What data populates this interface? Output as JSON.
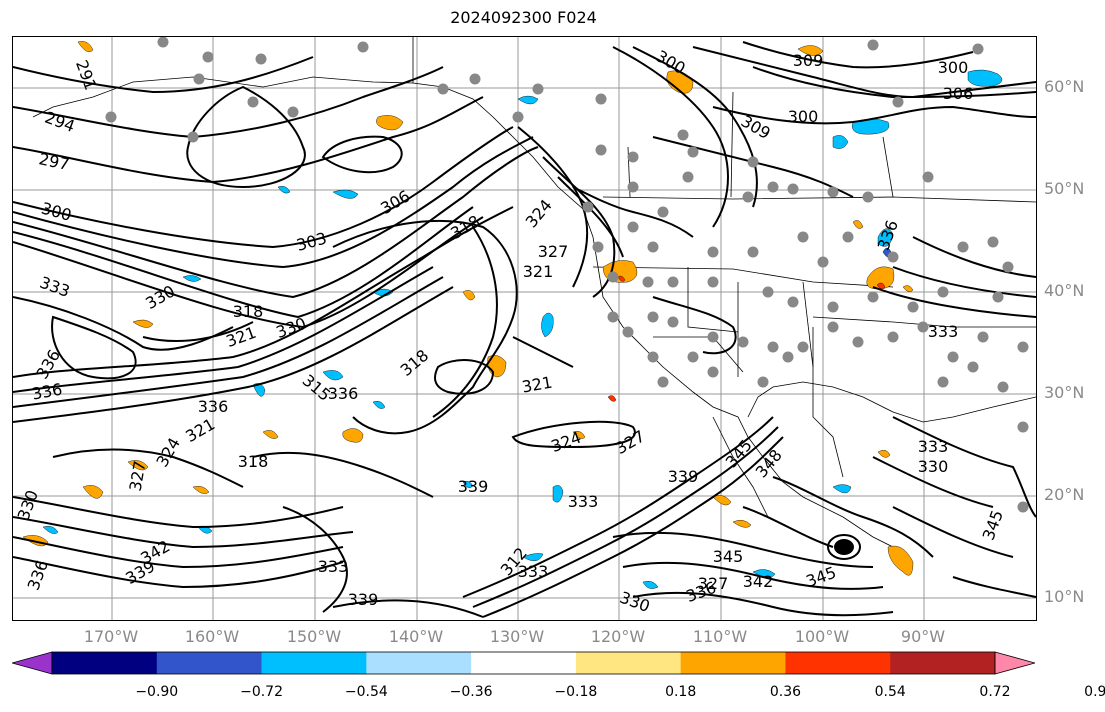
{
  "title": "2024092300 F024",
  "lat_labels": [
    "60°N",
    "50°N",
    "40°N",
    "30°N",
    "20°N",
    "10°N"
  ],
  "lon_labels": [
    "170°W",
    "160°W",
    "150°W",
    "140°W",
    "130°W",
    "120°W",
    "110°W",
    "100°W",
    "90°W"
  ],
  "colorbar": {
    "colors": [
      "#9933cc",
      "#000080",
      "#3355cc",
      "#00bfff",
      "#aadfff",
      "#ffffff",
      "#ffe680",
      "#ffa500",
      "#ff3300",
      "#b22222",
      "#ff88aa"
    ],
    "ticks": [
      "−0.90",
      "−0.72",
      "−0.54",
      "−0.36",
      "−0.18",
      "0.18",
      "0.36",
      "0.54",
      "0.72",
      "0.90"
    ]
  },
  "contour_labels": [
    "291",
    "294",
    "297",
    "300",
    "303",
    "306",
    "309",
    "300",
    "306",
    "300",
    "309",
    "300",
    "318",
    "321",
    "324",
    "327",
    "330",
    "333",
    "336",
    "315",
    "318",
    "321",
    "324",
    "327",
    "318",
    "321",
    "324",
    "327",
    "330",
    "333",
    "336",
    "339",
    "342",
    "345",
    "345",
    "342",
    "345",
    "339",
    "336",
    "339",
    "348",
    "345",
    "330",
    "333",
    "336",
    "333",
    "336",
    "339",
    "318",
    "321",
    "312",
    "336",
    "333",
    "330",
    "327",
    "333",
    "336",
    "330"
  ]
}
